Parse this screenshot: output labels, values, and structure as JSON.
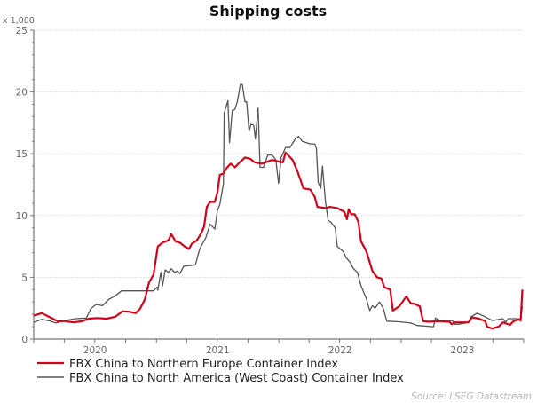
{
  "chart_data": {
    "type": "line",
    "title": "Shipping costs",
    "ylabel": "x 1,000",
    "xlabel": "",
    "ylim": [
      0,
      25
    ],
    "yticks": [
      "0",
      "5",
      "10",
      "15",
      "20",
      "25"
    ],
    "xlim": [
      "2020-01-01",
      "2024-01-01"
    ],
    "xtick_labels": [
      "2020",
      "2021",
      "2022",
      "2023"
    ],
    "grid": "horizontal dotted",
    "legend_position": "bottom-left",
    "source": "Source: LSEG Datastream",
    "series": [
      {
        "name": "FBX China to Northern Europe Container Index",
        "color": "#d0021b",
        "points": [
          [
            "2020-01-01",
            1.9
          ],
          [
            "2020-01-25",
            2.1
          ],
          [
            "2020-02-09",
            1.9
          ],
          [
            "2020-02-27",
            1.65
          ],
          [
            "2020-03-12",
            1.45
          ],
          [
            "2020-04-03",
            1.45
          ],
          [
            "2020-04-29",
            1.35
          ],
          [
            "2020-05-25",
            1.45
          ],
          [
            "2020-06-13",
            1.65
          ],
          [
            "2020-07-09",
            1.7
          ],
          [
            "2020-08-05",
            1.65
          ],
          [
            "2020-08-31",
            1.8
          ],
          [
            "2020-09-22",
            2.25
          ],
          [
            "2020-10-15",
            2.2
          ],
          [
            "2020-10-31",
            2.1
          ],
          [
            "2020-11-13",
            2.45
          ],
          [
            "2020-11-27",
            3.2
          ],
          [
            "2020-12-10",
            4.6
          ],
          [
            "2020-12-23",
            5.2
          ],
          [
            "2021-01-05",
            7.5
          ],
          [
            "2021-01-19",
            7.8
          ],
          [
            "2021-02-06",
            8.0
          ],
          [
            "2021-02-14",
            8.5
          ],
          [
            "2021-02-27",
            7.9
          ],
          [
            "2021-03-12",
            7.8
          ],
          [
            "2021-03-26",
            7.5
          ],
          [
            "2021-04-08",
            7.3
          ],
          [
            "2021-04-16",
            7.7
          ],
          [
            "2021-05-02",
            8.0
          ],
          [
            "2021-05-15",
            8.6
          ],
          [
            "2021-05-23",
            9.1
          ],
          [
            "2021-05-31",
            10.7
          ],
          [
            "2021-06-10",
            11.1
          ],
          [
            "2021-06-24",
            11.1
          ],
          [
            "2021-07-02",
            11.9
          ],
          [
            "2021-07-09",
            13.3
          ],
          [
            "2021-07-20",
            13.4
          ],
          [
            "2021-07-28",
            13.8
          ],
          [
            "2021-08-10",
            14.2
          ],
          [
            "2021-08-23",
            13.9
          ],
          [
            "2021-09-06",
            14.3
          ],
          [
            "2021-09-22",
            14.7
          ],
          [
            "2021-10-07",
            14.6
          ],
          [
            "2021-10-21",
            14.3
          ],
          [
            "2021-11-11",
            14.2
          ],
          [
            "2021-12-12",
            14.5
          ],
          [
            "2021-12-28",
            14.4
          ],
          [
            "2022-01-13",
            14.3
          ],
          [
            "2022-01-21",
            15.1
          ],
          [
            "2022-02-11",
            14.5
          ],
          [
            "2022-02-25",
            13.6
          ],
          [
            "2022-03-15",
            12.2
          ],
          [
            "2022-04-05",
            12.1
          ],
          [
            "2022-04-18",
            11.5
          ],
          [
            "2022-04-26",
            10.7
          ],
          [
            "2022-05-20",
            10.6
          ],
          [
            "2022-06-02",
            10.7
          ],
          [
            "2022-06-24",
            10.6
          ],
          [
            "2022-07-15",
            10.3
          ],
          [
            "2022-07-23",
            9.7
          ],
          [
            "2022-07-28",
            10.5
          ],
          [
            "2022-08-05",
            10.1
          ],
          [
            "2022-08-15",
            10.1
          ],
          [
            "2022-08-26",
            9.5
          ],
          [
            "2022-09-03",
            7.9
          ],
          [
            "2022-09-19",
            7.1
          ],
          [
            "2022-10-07",
            5.5
          ],
          [
            "2022-10-21",
            5.0
          ],
          [
            "2022-11-03",
            4.9
          ],
          [
            "2022-11-11",
            4.2
          ],
          [
            "2022-11-29",
            4.0
          ],
          [
            "2022-12-07",
            2.3
          ],
          [
            "2022-12-26",
            2.65
          ],
          [
            "2023-01-16",
            3.45
          ],
          [
            "2023-01-29",
            2.9
          ],
          [
            "2023-02-09",
            2.85
          ],
          [
            "2023-02-25",
            2.65
          ],
          [
            "2023-03-07",
            1.45
          ],
          [
            "2023-03-23",
            1.4
          ],
          [
            "2023-04-18",
            1.45
          ],
          [
            "2023-05-25",
            1.4
          ],
          [
            "2023-05-31",
            1.2
          ],
          [
            "2023-06-10",
            1.35
          ],
          [
            "2023-07-20",
            1.35
          ],
          [
            "2023-07-31",
            1.75
          ],
          [
            "2023-08-21",
            1.65
          ],
          [
            "2023-09-08",
            1.45
          ],
          [
            "2023-09-14",
            1.0
          ],
          [
            "2023-09-29",
            0.85
          ],
          [
            "2023-10-18",
            1.0
          ],
          [
            "2023-10-31",
            1.35
          ],
          [
            "2023-11-21",
            1.15
          ],
          [
            "2023-12-02",
            1.45
          ],
          [
            "2023-12-18",
            1.6
          ],
          [
            "2023-12-23",
            1.5
          ],
          [
            "2023-12-28",
            4.0
          ]
        ]
      },
      {
        "name": "FBX China to North America (West Coast) Container Index",
        "color": "#555555",
        "points": [
          [
            "2020-01-01",
            1.35
          ],
          [
            "2020-01-25",
            1.6
          ],
          [
            "2020-02-20",
            1.45
          ],
          [
            "2020-03-07",
            1.3
          ],
          [
            "2020-04-03",
            1.5
          ],
          [
            "2020-05-05",
            1.65
          ],
          [
            "2020-06-06",
            1.7
          ],
          [
            "2020-06-19",
            2.45
          ],
          [
            "2020-07-05",
            2.8
          ],
          [
            "2020-07-24",
            2.7
          ],
          [
            "2020-08-11",
            3.2
          ],
          [
            "2020-08-31",
            3.5
          ],
          [
            "2020-09-19",
            3.9
          ],
          [
            "2020-11-11",
            3.9
          ],
          [
            "2020-12-23",
            3.9
          ],
          [
            "2021-01-03",
            4.2
          ],
          [
            "2021-01-05",
            3.95
          ],
          [
            "2021-01-14",
            5.4
          ],
          [
            "2021-01-19",
            4.3
          ],
          [
            "2021-01-27",
            5.6
          ],
          [
            "2021-02-06",
            5.4
          ],
          [
            "2021-02-14",
            5.7
          ],
          [
            "2021-02-24",
            5.4
          ],
          [
            "2021-03-04",
            5.5
          ],
          [
            "2021-03-12",
            5.3
          ],
          [
            "2021-03-23",
            5.9
          ],
          [
            "2021-04-27",
            6.0
          ],
          [
            "2021-05-10",
            7.3
          ],
          [
            "2021-05-18",
            7.7
          ],
          [
            "2021-05-28",
            8.2
          ],
          [
            "2021-06-10",
            9.3
          ],
          [
            "2021-06-24",
            8.9
          ],
          [
            "2021-07-02",
            10.4
          ],
          [
            "2021-07-09",
            10.9
          ],
          [
            "2021-07-20",
            12.6
          ],
          [
            "2021-07-22",
            18.3
          ],
          [
            "2021-08-02",
            19.3
          ],
          [
            "2021-08-07",
            15.9
          ],
          [
            "2021-08-15",
            18.5
          ],
          [
            "2021-08-23",
            18.6
          ],
          [
            "2021-08-31",
            19.3
          ],
          [
            "2021-09-08",
            20.6
          ],
          [
            "2021-09-14",
            20.6
          ],
          [
            "2021-09-22",
            19.2
          ],
          [
            "2021-09-27",
            19.2
          ],
          [
            "2021-10-04",
            16.8
          ],
          [
            "2021-10-10",
            17.4
          ],
          [
            "2021-10-18",
            17.3
          ],
          [
            "2021-10-23",
            16.2
          ],
          [
            "2021-10-31",
            18.7
          ],
          [
            "2021-11-06",
            13.9
          ],
          [
            "2021-11-16",
            13.9
          ],
          [
            "2021-11-29",
            14.9
          ],
          [
            "2021-12-12",
            14.9
          ],
          [
            "2021-12-23",
            14.5
          ],
          [
            "2021-12-31",
            12.6
          ],
          [
            "2022-01-08",
            14.7
          ],
          [
            "2022-01-21",
            15.5
          ],
          [
            "2022-02-03",
            15.5
          ],
          [
            "2022-02-19",
            16.2
          ],
          [
            "2022-03-01",
            16.4
          ],
          [
            "2022-03-12",
            16.0
          ],
          [
            "2022-04-05",
            15.8
          ],
          [
            "2022-04-18",
            15.8
          ],
          [
            "2022-04-23",
            15.4
          ],
          [
            "2022-04-28",
            12.7
          ],
          [
            "2022-05-06",
            12.2
          ],
          [
            "2022-05-11",
            14.0
          ],
          [
            "2022-05-20",
            11.1
          ],
          [
            "2022-05-28",
            9.6
          ],
          [
            "2022-06-04",
            9.5
          ],
          [
            "2022-06-18",
            9.0
          ],
          [
            "2022-06-24",
            7.5
          ],
          [
            "2022-07-12",
            7.1
          ],
          [
            "2022-07-20",
            6.6
          ],
          [
            "2022-08-02",
            6.2
          ],
          [
            "2022-08-10",
            5.75
          ],
          [
            "2022-08-23",
            5.4
          ],
          [
            "2022-09-03",
            4.3
          ],
          [
            "2022-09-19",
            3.25
          ],
          [
            "2022-09-29",
            2.3
          ],
          [
            "2022-10-07",
            2.7
          ],
          [
            "2022-10-15",
            2.5
          ],
          [
            "2022-10-28",
            3.0
          ],
          [
            "2022-11-08",
            2.5
          ],
          [
            "2022-11-19",
            1.45
          ],
          [
            "2022-12-26",
            1.4
          ],
          [
            "2023-01-29",
            1.3
          ],
          [
            "2023-02-17",
            1.1
          ],
          [
            "2023-04-07",
            1.0
          ],
          [
            "2023-04-13",
            1.7
          ],
          [
            "2023-05-01",
            1.45
          ],
          [
            "2023-06-02",
            1.5
          ],
          [
            "2023-06-10",
            1.2
          ],
          [
            "2023-06-20",
            1.2
          ],
          [
            "2023-07-20",
            1.35
          ],
          [
            "2023-07-28",
            1.8
          ],
          [
            "2023-08-15",
            2.1
          ],
          [
            "2023-09-08",
            1.8
          ],
          [
            "2023-09-29",
            1.5
          ],
          [
            "2023-10-31",
            1.65
          ],
          [
            "2023-11-08",
            1.35
          ],
          [
            "2023-11-16",
            1.65
          ],
          [
            "2023-12-12",
            1.65
          ],
          [
            "2023-12-23",
            1.5
          ],
          [
            "2023-12-28",
            2.65
          ]
        ]
      }
    ]
  }
}
